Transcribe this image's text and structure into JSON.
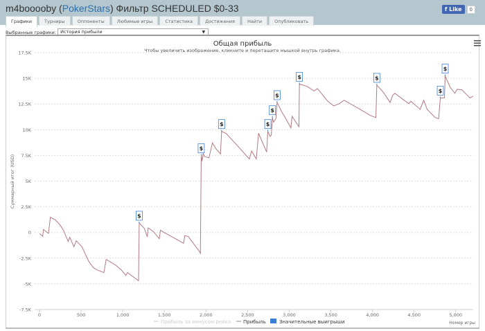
{
  "header": {
    "user": "m4booooby",
    "site": "PokerStars",
    "filter": "Фильтр SCHEDULED $0-33",
    "fb_like": "Like",
    "fb_count": "0"
  },
  "tabs": [
    {
      "label": "Графики",
      "active": true
    },
    {
      "label": "Турниры"
    },
    {
      "label": "Оппоненты"
    },
    {
      "label": "Любимые игры"
    },
    {
      "label": "Статистика"
    },
    {
      "label": "Достижения"
    },
    {
      "label": "Найти"
    },
    {
      "label": "Опубликовать"
    }
  ],
  "graph_select": {
    "label": "Выбранные графики:",
    "value": "История прибыли",
    "arrow": "▼"
  },
  "chart_data": {
    "type": "line",
    "title": "Общая прибыль",
    "subtitle": "Чтобы увеличить изображение, кликните и перетащите мышкой внутрь графика.",
    "xlabel": "Номер игры",
    "ylabel": "Суммарный итог (USD)",
    "xlim": [
      -58,
      5210
    ],
    "ylim": [
      -7500,
      17500
    ],
    "xticks": [
      0,
      500,
      1000,
      1500,
      2000,
      2500,
      3000,
      3500,
      4000,
      4500,
      5000
    ],
    "xtick_labels": [
      "0",
      "500",
      "1,000",
      "1,500",
      "2,000",
      "2,500",
      "3,000",
      "3,500",
      "4,000",
      "4,500",
      "5,000"
    ],
    "yticks": [
      17500,
      15000,
      12500,
      10000,
      7500,
      5000,
      2500,
      0,
      -2500,
      -5000,
      -7500
    ],
    "ytick_labels": [
      "17.5K",
      "15K",
      "12.5K",
      "10K",
      "7.5K",
      "5K",
      "2.5K",
      "0",
      "-2.5K",
      "-5K",
      "-7.5K"
    ],
    "grid": true,
    "legend_position": "bottom",
    "menu_icon": "hamburger-icon",
    "series": [
      {
        "name": "Прибыль за минусом рейка",
        "color": "#cccccc",
        "hidden": true,
        "points": []
      },
      {
        "name": "Прибыль",
        "color": "#b07a80",
        "points": [
          [
            2,
            -115
          ],
          [
            39,
            -384
          ],
          [
            47,
            290
          ],
          [
            108,
            -88
          ],
          [
            131,
            1483
          ],
          [
            191,
            1213
          ],
          [
            247,
            741
          ],
          [
            289,
            202
          ],
          [
            344,
            -876
          ],
          [
            364,
            -472
          ],
          [
            414,
            -1395
          ],
          [
            441,
            -809
          ],
          [
            510,
            -1395
          ],
          [
            593,
            -2831
          ],
          [
            649,
            -3437
          ],
          [
            691,
            -3640
          ],
          [
            774,
            -3909
          ],
          [
            801,
            -2629
          ],
          [
            913,
            -3168
          ],
          [
            982,
            -3640
          ],
          [
            1037,
            -4179
          ],
          [
            1057,
            -3909
          ],
          [
            1190,
            -4698
          ],
          [
            1198,
            923
          ],
          [
            1259,
            404
          ],
          [
            1295,
            -425
          ],
          [
            1306,
            452
          ],
          [
            1370,
            67
          ],
          [
            1439,
            -607
          ],
          [
            1453,
            222
          ],
          [
            1508,
            -47
          ],
          [
            1633,
            -607
          ],
          [
            1731,
            -1058
          ],
          [
            1745,
            -317
          ],
          [
            1786,
            -384
          ],
          [
            1911,
            -1732
          ],
          [
            1933,
            -2022
          ],
          [
            1943,
            7481
          ],
          [
            1953,
            6942
          ],
          [
            1966,
            7684
          ],
          [
            1980,
            7414
          ],
          [
            2036,
            7259
          ],
          [
            2077,
            8715
          ],
          [
            2119,
            8155
          ],
          [
            2174,
            7636
          ],
          [
            2188,
            9840
          ],
          [
            2244,
            9618
          ],
          [
            2410,
            8155
          ],
          [
            2521,
            7144
          ],
          [
            2548,
            7933
          ],
          [
            2604,
            7144
          ],
          [
            2632,
            9658
          ],
          [
            2729,
            7818
          ],
          [
            2743,
            9840
          ],
          [
            2771,
            9348
          ],
          [
            2785,
            9503
          ],
          [
            2798,
            11188
          ],
          [
            2812,
            10737
          ],
          [
            2840,
            11074
          ],
          [
            2854,
            12651
          ],
          [
            2909,
            11748
          ],
          [
            2951,
            11188
          ],
          [
            3020,
            10177
          ],
          [
            3034,
            11303
          ],
          [
            3117,
            10292
          ],
          [
            3122,
            14444
          ],
          [
            3214,
            14221
          ],
          [
            3297,
            13770
          ],
          [
            3339,
            13999
          ],
          [
            3464,
            12759
          ],
          [
            3519,
            12422
          ],
          [
            3533,
            12314
          ],
          [
            3603,
            12536
          ],
          [
            3658,
            12873
          ],
          [
            3852,
            11977
          ],
          [
            3977,
            11370
          ],
          [
            4041,
            11188
          ],
          [
            4052,
            14336
          ],
          [
            4129,
            13662
          ],
          [
            4212,
            12651
          ],
          [
            4241,
            13325
          ],
          [
            4268,
            13547
          ],
          [
            4435,
            12536
          ],
          [
            4462,
            12759
          ],
          [
            4573,
            11977
          ],
          [
            4615,
            12873
          ],
          [
            4657,
            11977
          ],
          [
            4753,
            11188
          ],
          [
            4795,
            11074
          ],
          [
            4815,
            13096
          ],
          [
            4865,
            13096
          ],
          [
            4873,
            15232
          ],
          [
            4934,
            14107
          ],
          [
            4990,
            13547
          ],
          [
            5017,
            13932
          ],
          [
            5072,
            13884
          ],
          [
            5141,
            13325
          ],
          [
            5169,
            13096
          ],
          [
            5211,
            13258
          ]
        ]
      },
      {
        "name": "Значительные выигрыши",
        "color": "#3a7fd5",
        "marker": "$",
        "points": [
          [
            1198,
            923
          ],
          [
            1943,
            7481
          ],
          [
            2188,
            9840
          ],
          [
            2743,
            9840
          ],
          [
            2798,
            11188
          ],
          [
            2854,
            12651
          ],
          [
            3122,
            14444
          ],
          [
            4052,
            14336
          ],
          [
            4815,
            13096
          ],
          [
            4873,
            15232
          ]
        ]
      }
    ]
  }
}
